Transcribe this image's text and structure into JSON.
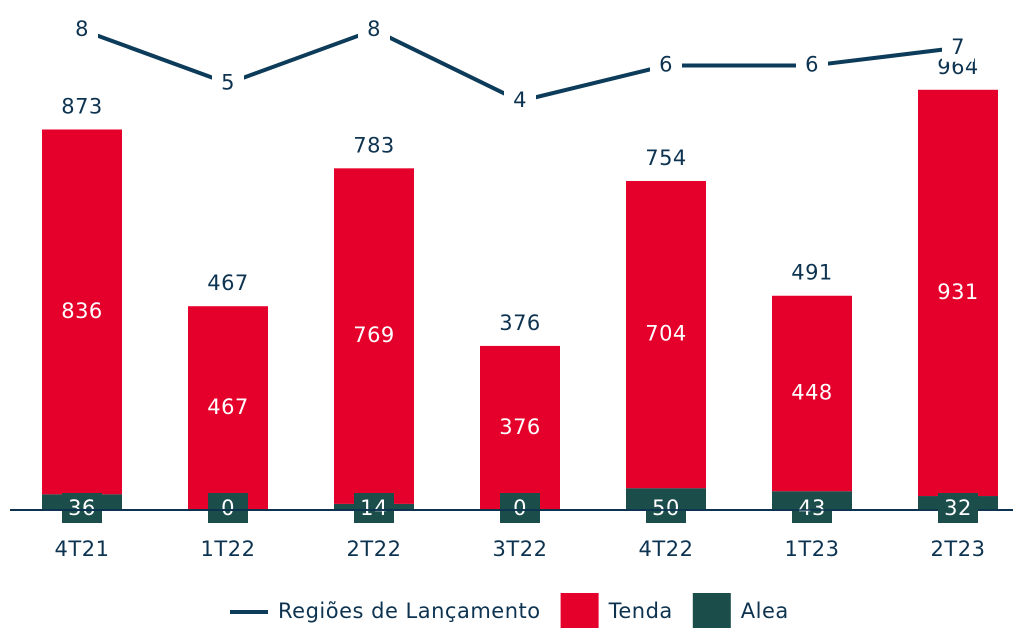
{
  "chart_data": {
    "type": "bar",
    "stacked": true,
    "categories": [
      "4T21",
      "1T22",
      "2T22",
      "3T22",
      "4T22",
      "1T23",
      "2T23"
    ],
    "series": [
      {
        "name": "Alea",
        "color": "#1b4d4b",
        "values": [
          36,
          0,
          14,
          0,
          50,
          43,
          32
        ]
      },
      {
        "name": "Tenda",
        "color": "#e4002b",
        "values": [
          836,
          467,
          769,
          376,
          704,
          448,
          931
        ]
      },
      {
        "name": "Regiões de Lançamento",
        "color": "#0d3b5a",
        "type": "line",
        "axis": "y2",
        "values": [
          8,
          5,
          8,
          4,
          6,
          6,
          7
        ]
      }
    ],
    "totals": [
      873,
      467,
      783,
      376,
      754,
      491,
      964
    ],
    "ylim": [
      0,
      1100
    ],
    "y2lim": [
      -19,
      8
    ]
  }
}
